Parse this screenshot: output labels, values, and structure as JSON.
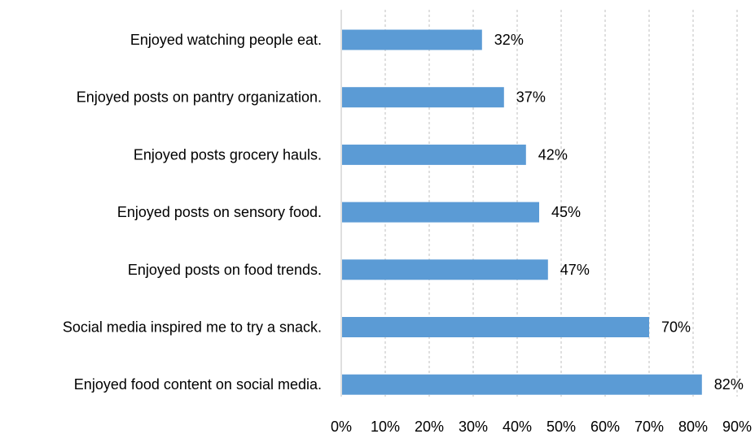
{
  "chart_data": {
    "type": "bar",
    "orientation": "horizontal",
    "title": "",
    "xlabel": "",
    "ylabel": "",
    "categories": [
      "Enjoyed watching people eat.",
      "Enjoyed posts on pantry organization.",
      "Enjoyed posts grocery hauls.",
      "Enjoyed posts on sensory food.",
      "Enjoyed posts on food trends.",
      "Social media inspired me to try a snack.",
      "Enjoyed food content on social media."
    ],
    "values": [
      32,
      37,
      42,
      45,
      47,
      70,
      82
    ],
    "data_labels": [
      "32%",
      "37%",
      "42%",
      "45%",
      "47%",
      "70%",
      "82%"
    ],
    "xlim": [
      0,
      90
    ],
    "x_ticks": [
      0,
      10,
      20,
      30,
      40,
      50,
      60,
      70,
      80,
      90
    ],
    "x_tick_labels": [
      "0%",
      "10%",
      "20%",
      "30%",
      "40%",
      "50%",
      "60%",
      "70%",
      "80%",
      "90%"
    ],
    "grid": "vertical dashed",
    "legend": "none",
    "colors": {
      "bar": "#5b9bd5",
      "grid": "#bfbfbf",
      "axis": "#bfbfbf"
    }
  }
}
